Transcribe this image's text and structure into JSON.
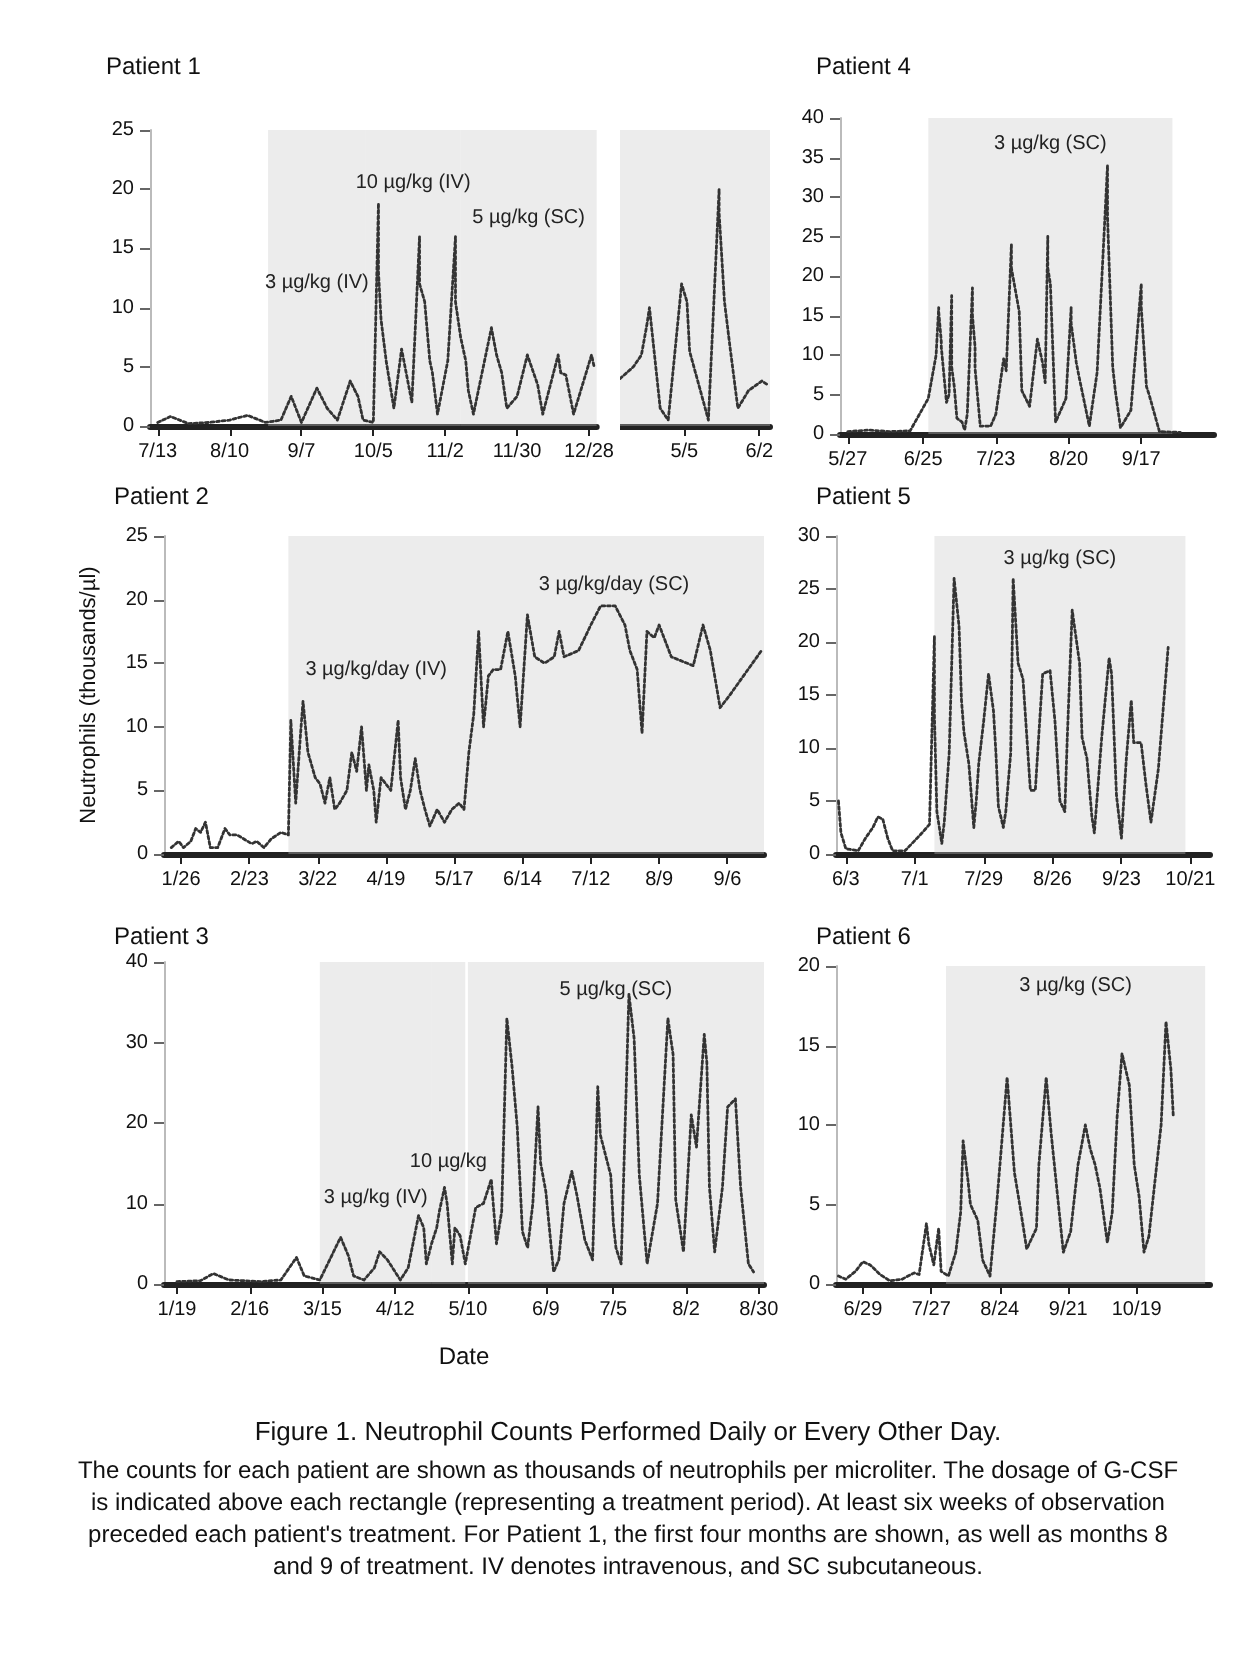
{
  "chart_data": [
    {
      "type": "line",
      "title": "Patient 1",
      "color": "#333333",
      "line_style": "dotted",
      "marker": "none",
      "grid": false,
      "x": [
        "--07-13",
        "--07-18",
        "--07-25",
        "--08-02",
        "--08-10",
        "--08-17",
        "--08-24",
        "--08-30",
        "--09-03",
        "--09-07",
        "--09-13",
        "--09-17",
        "--09-21",
        "--09-26",
        "--09-29",
        "--10-01",
        "--10-05",
        "--10-07",
        "--10-07",
        "--10-08",
        "--10-10",
        "--10-13",
        "--10-16",
        "--10-20",
        "--10-23",
        "--10-23",
        "--10-25",
        "--10-27",
        "--10-28",
        "--10-30",
        "--11-03",
        "--11-06",
        "--11-06",
        "--11-08",
        "--11-10",
        "--11-11",
        "--11-13",
        "--11-20",
        "--11-22",
        "--11-24",
        "--11-26",
        "--11-30",
        "--12-04",
        "--12-08",
        "--12-10",
        "--12-16",
        "--12-17",
        "--12-19",
        "--12-22",
        "--12-29",
        "--12-30"
      ],
      "values": [
        0.3,
        0.8,
        0.2,
        0.3,
        0.5,
        0.9,
        0.3,
        0.5,
        2.5,
        0.3,
        3.2,
        1.5,
        0.5,
        3.8,
        2.5,
        0.5,
        0.3,
        18.8,
        13,
        9,
        5.5,
        1.5,
        6.5,
        2,
        16,
        12,
        10.5,
        5.5,
        4.5,
        1,
        5.5,
        16,
        10.5,
        7.5,
        5.5,
        3,
        1,
        8.3,
        6,
        4.5,
        1.5,
        2.5,
        6,
        3.5,
        1,
        6,
        4.5,
        4.3,
        1,
        6,
        5
      ],
      "xlim": [
        "--07-10",
        "--12-31"
      ],
      "xticks": [
        {
          "value": "--07-13",
          "label": "7/13"
        },
        {
          "value": "--08-10",
          "label": "8/10"
        },
        {
          "value": "--09-07",
          "label": "9/7"
        },
        {
          "value": "--10-05",
          "label": "10/5"
        },
        {
          "value": "--11-02",
          "label": "11/2"
        },
        {
          "value": "--11-30",
          "label": "11/30"
        },
        {
          "value": "--12-28",
          "label": "12/28"
        }
      ],
      "ylim": [
        0,
        25
      ],
      "yticks": [
        0,
        5,
        10,
        15,
        20,
        25
      ],
      "bands": [
        {
          "axis": "x",
          "from": "--08-25",
          "to": "--10-02",
          "label": "3 µg/kg (IV)"
        },
        {
          "axis": "x",
          "from": "--10-02",
          "to": "--11-08",
          "label": "10 µg/kg (IV)"
        },
        {
          "axis": "x",
          "from": "--11-08",
          "to": "--12-31",
          "label": "5 µg/kg (SC)"
        }
      ]
    },
    {
      "type": "line",
      "tick_labels": "x",
      "color": "#333333",
      "line_style": "dotted",
      "marker": "none",
      "grid": false,
      "x": [
        "--04-11",
        "--04-16",
        "--04-19",
        "--04-21",
        "--04-22",
        "--04-26",
        "--04-29",
        "--05-04",
        "--05-06",
        "--05-07",
        "--05-11",
        "--05-14",
        "--05-18",
        "--05-18",
        "--05-20",
        "--05-22",
        "--05-25",
        "--05-29",
        "--06-03",
        "--06-05"
      ],
      "values": [
        4,
        5,
        6,
        8.5,
        10,
        1.5,
        0.5,
        12,
        10.5,
        6.3,
        3,
        0.5,
        20,
        18,
        10.5,
        6.8,
        1.5,
        3,
        3.8,
        3.5
      ],
      "xlim": [
        "--04-11",
        "--06-06"
      ],
      "xticks": [
        {
          "value": "--05-05",
          "label": "5/5"
        },
        {
          "value": "--06-02",
          "label": "6/2"
        }
      ],
      "ylim": [
        0,
        25
      ],
      "bands": [
        {
          "axis": "x",
          "from": "--04-11",
          "to": "--06-06"
        }
      ]
    },
    {
      "type": "line",
      "title": "Patient 4",
      "color": "#333333",
      "line_style": "dotted",
      "marker": "none",
      "grid": false,
      "x": [
        "--05-27",
        "--06-04",
        "--06-12",
        "--06-20",
        "--06-27",
        "--06-30",
        "--07-01",
        "--07-01",
        "--07-02",
        "--07-02",
        "--07-04",
        "--07-05",
        "--07-06",
        "--07-06",
        "--07-07",
        "--07-08",
        "--07-10",
        "--07-11",
        "--07-12",
        "--07-14",
        "--07-14",
        "--07-15",
        "--07-15",
        "--07-17",
        "--07-21",
        "--07-23",
        "--07-26",
        "--07-27",
        "--07-29",
        "--07-29",
        "--08-01",
        "--08-02",
        "--08-05",
        "--08-08",
        "--08-09",
        "--08-10",
        "--08-11",
        "--08-12",
        "--08-12",
        "--08-13",
        "--08-15",
        "--08-19",
        "--08-21",
        "--08-21",
        "--08-23",
        "--08-24",
        "--08-28",
        "--08-31",
        "--09-04",
        "--09-04",
        "--09-06",
        "--09-07",
        "--09-09",
        "--09-13",
        "--09-17",
        "--09-17",
        "--09-19",
        "--09-20",
        "--09-24",
        "--10-02"
      ],
      "values": [
        0.3,
        0.5,
        0.3,
        0.4,
        4.5,
        10,
        16,
        15.5,
        11.7,
        11,
        4,
        5,
        17.5,
        8.5,
        6,
        2,
        1.5,
        0.5,
        2.5,
        18.5,
        15,
        11,
        8.3,
        1,
        1,
        2.5,
        9.5,
        8,
        24,
        21,
        15.5,
        5.5,
        3.5,
        12,
        10.5,
        9,
        6.5,
        25,
        21,
        19,
        1.5,
        4.5,
        16,
        14,
        9,
        7.3,
        1,
        7.8,
        34,
        27.5,
        8.5,
        5.5,
        0.8,
        3,
        19,
        16,
        6,
        5,
        0.3,
        0.2
      ],
      "xlim": [
        "--05-24",
        "--10-15"
      ],
      "xticks": [
        {
          "value": "--05-27",
          "label": "5/27"
        },
        {
          "value": "--06-25",
          "label": "6/25"
        },
        {
          "value": "--07-23",
          "label": "7/23"
        },
        {
          "value": "--08-20",
          "label": "8/20"
        },
        {
          "value": "--09-17",
          "label": "9/17"
        }
      ],
      "ylim": [
        0,
        40
      ],
      "yticks": [
        0,
        5,
        10,
        15,
        20,
        25,
        30,
        35,
        40
      ],
      "bands": [
        {
          "axis": "x",
          "from": "--06-27",
          "to": "--09-29",
          "label": "3 µg/kg (SC)"
        }
      ]
    },
    {
      "type": "line",
      "title": "Patient 2",
      "ylabel": "Neutrophils (thousands/µl)",
      "color": "#333333",
      "line_style": "dotted",
      "marker": "none",
      "grid": false,
      "x": [
        "--01-22",
        "--01-25",
        "--01-27",
        "--01-30",
        "--02-01",
        "--02-03",
        "--02-05",
        "--02-07",
        "--02-10",
        "--02-13",
        "--02-15",
        "--02-18",
        "--02-24",
        "--02-26",
        "--02-29",
        "--03-03",
        "--03-07",
        "--03-10",
        "--03-11",
        "--03-13",
        "--03-15",
        "--03-16",
        "--03-18",
        "--03-21",
        "--03-23",
        "--03-25",
        "--03-27",
        "--03-29",
        "--03-31",
        "--04-03",
        "--04-05",
        "--04-07",
        "--04-09",
        "--04-11",
        "--04-12",
        "--04-14",
        "--04-15",
        "--04-17",
        "--04-19",
        "--04-21",
        "--04-24",
        "--04-25",
        "--04-27",
        "--04-29",
        "--05-01",
        "--05-03",
        "--05-05",
        "--05-07",
        "--05-10",
        "--05-13",
        "--05-16",
        "--05-19",
        "--05-21",
        "--05-23",
        "--05-25",
        "--05-27",
        "--05-29",
        "--05-31",
        "--06-02",
        "--06-05",
        "--06-08",
        "--06-11",
        "--06-13",
        "--06-16",
        "--06-19",
        "--06-23",
        "--06-27",
        "--06-29",
        "--07-01",
        "--07-07",
        "--07-12",
        "--07-16",
        "--07-22",
        "--07-26",
        "--07-28",
        "--07-31",
        "--08-02",
        "--08-04",
        "--08-07",
        "--08-09",
        "--08-11",
        "--08-14",
        "--08-23",
        "--08-27",
        "--08-30",
        "--09-03",
        "--09-07",
        "--09-20"
      ],
      "values": [
        0.5,
        1,
        0.5,
        1,
        2,
        1.7,
        2.5,
        0.5,
        0.5,
        2,
        1.5,
        1.5,
        0.8,
        1,
        0.5,
        1.2,
        1.7,
        1.5,
        10.5,
        4,
        9.5,
        12,
        8,
        6,
        5.5,
        4,
        6,
        3.5,
        4,
        5,
        8,
        6.5,
        10,
        5,
        7,
        5,
        2.5,
        6,
        5.5,
        5,
        10.5,
        6,
        3.5,
        5,
        7.5,
        5,
        3.5,
        2.2,
        3.5,
        2.5,
        3.5,
        4,
        3.5,
        8,
        11,
        17.5,
        10,
        14,
        14.5,
        14.5,
        17.5,
        14,
        10,
        18.8,
        15.5,
        15,
        15.5,
        17.5,
        15.5,
        16,
        18,
        19.5,
        19.5,
        18,
        16,
        14.5,
        9.5,
        17.5,
        17,
        18,
        17,
        15.5,
        14.8,
        18,
        16,
        11.5,
        12.5,
        16
      ],
      "xlim": [
        "--01-19",
        "--09-21"
      ],
      "xticks": [
        {
          "value": "--01-26",
          "label": "1/26"
        },
        {
          "value": "--02-23",
          "label": "2/23"
        },
        {
          "value": "--03-22",
          "label": "3/22"
        },
        {
          "value": "--04-19",
          "label": "4/19"
        },
        {
          "value": "--05-17",
          "label": "5/17"
        },
        {
          "value": "--06-14",
          "label": "6/14"
        },
        {
          "value": "--07-12",
          "label": "7/12"
        },
        {
          "value": "--08-09",
          "label": "8/9"
        },
        {
          "value": "--09-06",
          "label": "9/6"
        }
      ],
      "ylim": [
        0,
        25
      ],
      "yticks": [
        0,
        5,
        10,
        15,
        20,
        25
      ],
      "bands": [
        {
          "axis": "x",
          "from": "--03-10",
          "to": "--05-21",
          "label": "3 µg/kg/day (IV)"
        },
        {
          "axis": "x",
          "from": "--05-21",
          "to": "--09-21",
          "label": "3 µg/kg/day (SC)"
        }
      ]
    },
    {
      "type": "line",
      "title": "Patient 5",
      "color": "#333333",
      "line_style": "dotted",
      "marker": "none",
      "grid": false,
      "x": [
        "--05-31",
        "--06-01",
        "--06-03",
        "--06-08",
        "--06-11",
        "--06-14",
        "--06-16",
        "--06-18",
        "--06-20",
        "--06-22",
        "--06-27",
        "--07-02",
        "--07-04",
        "--07-07",
        "--07-09",
        "--07-09",
        "--07-10",
        "--07-12",
        "--07-13",
        "--07-15",
        "--07-17",
        "--07-19",
        "--07-20",
        "--07-21",
        "--07-23",
        "--07-25",
        "--07-26",
        "--07-27",
        "--07-29",
        "--07-31",
        "--08-02",
        "--08-03",
        "--08-04",
        "--08-06",
        "--08-07",
        "--08-09",
        "--08-10",
        "--08-12",
        "--08-14",
        "--08-17",
        "--08-19",
        "--08-22",
        "--08-25",
        "--08-27",
        "--08-29",
        "--08-31",
        "--09-01",
        "--09-03",
        "--09-06",
        "--09-07",
        "--09-09",
        "--09-11",
        "--09-12",
        "--09-15",
        "--09-18",
        "--09-19",
        "--09-21",
        "--09-23",
        "--09-25",
        "--09-27",
        "--09-28",
        "--10-01",
        "--10-03",
        "--10-05",
        "--10-08",
        "--10-12"
      ],
      "values": [
        5,
        2,
        0.5,
        0.3,
        1.5,
        2.5,
        3.5,
        3.3,
        1.5,
        0.3,
        0.3,
        1.5,
        2,
        2.8,
        20.5,
        13,
        4,
        1,
        3,
        9.5,
        26,
        21.5,
        14.5,
        11.5,
        8.5,
        2.5,
        5,
        8.5,
        12.5,
        17,
        13.5,
        9.5,
        4.5,
        2.5,
        4,
        9.5,
        26,
        18,
        16.5,
        6,
        6,
        17,
        17.3,
        12.5,
        5,
        4,
        11,
        23,
        18,
        11,
        9,
        3.5,
        2,
        11,
        18.5,
        17,
        5.5,
        1.5,
        9,
        14.5,
        10.5,
        10.5,
        6.5,
        3,
        8,
        19.5
      ],
      "xlim": [
        "--05-30",
        "--10-29"
      ],
      "xticks": [
        {
          "value": "--06-03",
          "label": "6/3"
        },
        {
          "value": "--07-01",
          "label": "7/1"
        },
        {
          "value": "--07-29",
          "label": "7/29"
        },
        {
          "value": "--08-26",
          "label": "8/26"
        },
        {
          "value": "--09-23",
          "label": "9/23"
        },
        {
          "value": "--10-21",
          "label": "10/21"
        }
      ],
      "ylim": [
        0,
        30
      ],
      "yticks": [
        0,
        5,
        10,
        15,
        20,
        25,
        30
      ],
      "bands": [
        {
          "axis": "x",
          "from": "--07-09",
          "to": "--10-19",
          "label": "3 µg/kg (SC)"
        }
      ]
    },
    {
      "type": "line",
      "title": "Patient 3",
      "xlabel": "Date",
      "color": "#333333",
      "line_style": "dotted",
      "marker": "none",
      "grid": false,
      "x": [
        "--01-19",
        "--01-28",
        "--02-02",
        "--02-08",
        "--02-20",
        "--02-28",
        "--03-05",
        "--03-08",
        "--03-14",
        "--03-22",
        "--03-25",
        "--03-27",
        "--03-31",
        "--04-04",
        "--04-06",
        "--04-09",
        "--04-12",
        "--04-14",
        "--04-17",
        "--04-21",
        "--04-23",
        "--04-24",
        "--04-26",
        "--04-28",
        "--04-29",
        "--05-01",
        "--05-02",
        "--05-04",
        "--05-05",
        "--05-07",
        "--05-09",
        "--05-13",
        "--05-16",
        "--05-19",
        "--05-21",
        "--05-23",
        "--05-25",
        "--05-27",
        "--05-29",
        "--05-31",
        "--06-02",
        "--06-04",
        "--06-06",
        "--06-07",
        "--06-09",
        "--06-12",
        "--06-14",
        "--06-16",
        "--06-19",
        "--06-21",
        "--06-24",
        "--06-27",
        "--06-29",
        "--06-30",
        "--07-04",
        "--07-05",
        "--07-06",
        "--07-08",
        "--07-11",
        "--07-13",
        "--07-15",
        "--07-18",
        "--07-22",
        "--07-26",
        "--07-28",
        "--07-29",
        "--08-01",
        "--08-04",
        "--08-06",
        "--08-09",
        "--08-10",
        "--08-11",
        "--08-13",
        "--08-16",
        "--08-18",
        "--08-21",
        "--08-23",
        "--08-26",
        "--08-28"
      ],
      "values": [
        0.3,
        0.4,
        1.3,
        0.5,
        0.3,
        0.5,
        3.3,
        1,
        0.5,
        5.8,
        3.5,
        1,
        0.5,
        2,
        4,
        3,
        1.5,
        0.5,
        2,
        8.5,
        7,
        2.5,
        5,
        7,
        9,
        12,
        10,
        2.5,
        7,
        6,
        2.5,
        9.5,
        10,
        13,
        5,
        9,
        33,
        27,
        19.5,
        6.5,
        4.5,
        10,
        22,
        15,
        11.5,
        1.5,
        3,
        10,
        14,
        11,
        5.5,
        3,
        24.5,
        18.5,
        13.5,
        7.5,
        4.5,
        2.5,
        36,
        30.5,
        13.5,
        2.5,
        10,
        33,
        28.5,
        10.5,
        4,
        21,
        17,
        31,
        27.5,
        12,
        4,
        12,
        22,
        23,
        12,
        2.5,
        1.5
      ],
      "xlim": [
        "--01-14",
        "--09-01"
      ],
      "xticks": [
        {
          "value": "--01-19",
          "label": "1/19"
        },
        {
          "value": "--02-16",
          "label": "2/16"
        },
        {
          "value": "--03-15",
          "label": "3/15"
        },
        {
          "value": "--04-12",
          "label": "4/12"
        },
        {
          "value": "--05-10",
          "label": "5/10"
        },
        {
          "value": "--06-09",
          "label": "6/9"
        },
        {
          "value": "--07-05",
          "label": "7/5"
        },
        {
          "value": "--08-02",
          "label": "8/2"
        },
        {
          "value": "--08-30",
          "label": "8/30"
        }
      ],
      "ylim": [
        0,
        40
      ],
      "yticks": [
        0,
        10,
        20,
        30,
        40
      ],
      "bands": [
        {
          "axis": "x",
          "from": "--03-14",
          "to": "--04-26",
          "label": "3 µg/kg (IV)"
        },
        {
          "axis": "x",
          "from": "--04-26",
          "to": "--05-09",
          "label": "10 µg/kg"
        },
        {
          "axis": "x",
          "from": "--05-10",
          "to": "--09-01",
          "label": "5 µg/kg (SC)"
        }
      ]
    },
    {
      "type": "line",
      "title": "Patient 6",
      "color": "#333333",
      "line_style": "dotted",
      "marker": "none",
      "grid": false,
      "x": [
        "--06-19",
        "--06-22",
        "--06-26",
        "--06-29",
        "--07-02",
        "--07-06",
        "--07-10",
        "--07-15",
        "--07-20",
        "--07-22",
        "--07-25",
        "--07-26",
        "--07-28",
        "--07-30",
        "--07-31",
        "--08-03",
        "--08-06",
        "--08-08",
        "--08-09",
        "--08-11",
        "--08-12",
        "--08-15",
        "--08-17",
        "--08-20",
        "--08-23",
        "--08-27",
        "--08-28",
        "--08-30",
        "--09-02",
        "--09-04",
        "--09-08",
        "--09-09",
        "--09-12",
        "--09-14",
        "--09-17",
        "--09-19",
        "--09-22",
        "--09-25",
        "--09-28",
        "--09-30",
        "--10-02",
        "--10-04",
        "--10-07",
        "--10-09",
        "--10-11",
        "--10-13",
        "--10-16",
        "--10-18",
        "--10-20",
        "--10-22",
        "--10-24",
        "--10-29",
        "--10-31",
        "--11-02",
        "--11-03"
      ],
      "values": [
        0.5,
        0.3,
        0.8,
        1.4,
        1.2,
        0.6,
        0.2,
        0.3,
        0.7,
        0.6,
        3.8,
        2.5,
        1.2,
        3.5,
        0.8,
        0.5,
        2,
        4.5,
        9,
        6.5,
        5,
        4,
        1.5,
        0.5,
        5.5,
        13,
        11,
        7,
        4.2,
        2.2,
        3.5,
        7.5,
        13,
        9.5,
        5,
        2,
        3.3,
        7.5,
        10,
        8.5,
        7.5,
        6,
        2.6,
        4.5,
        10.5,
        14.5,
        12.5,
        7.5,
        5.5,
        2,
        3,
        10,
        16.5,
        13.5,
        10.5
      ],
      "xlim": [
        "--06-18",
        "--11-18"
      ],
      "xticks": [
        {
          "value": "--06-29",
          "label": "6/29"
        },
        {
          "value": "--07-27",
          "label": "7/27"
        },
        {
          "value": "--08-24",
          "label": "8/24"
        },
        {
          "value": "--09-21",
          "label": "9/21"
        },
        {
          "value": "--10-19",
          "label": "10/19"
        }
      ],
      "ylim": [
        0,
        20
      ],
      "yticks": [
        0,
        5,
        10,
        15,
        20
      ],
      "bands": [
        {
          "axis": "x",
          "from": "--08-02",
          "to": "--11-16",
          "label": "3 µg/kg (SC)"
        }
      ]
    },
    {
      "type": "other",
      "title": "Figure 1. Neutrophil Counts Performed Daily or Every Other Day.",
      "annotations": [
        "The counts for each patient are shown as thousands of neutrophils per microliter. The dosage of G-CSF is indicated above each rectangle (representing a treatment period). At least six weeks of observation preceded each patient's treatment. For Patient 1, the first four months are shown, as well as months 8 and 9 of treatment. IV denotes intravenous, and SC subcutaneous."
      ]
    }
  ]
}
